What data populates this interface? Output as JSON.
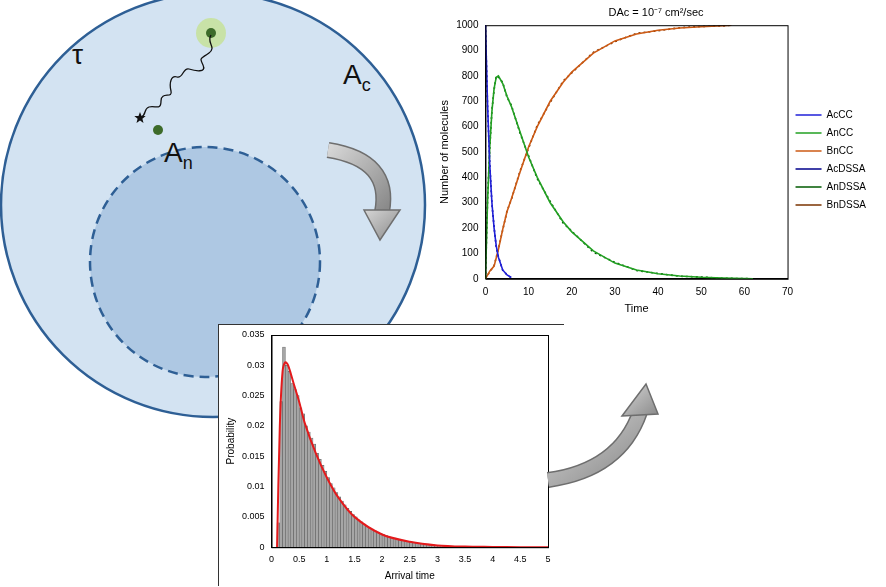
{
  "diagram": {
    "labels": [
      {
        "text": "τ"
      },
      {
        "text": "A",
        "subscript": "c"
      },
      {
        "text": "A",
        "subscript": "n"
      }
    ]
  },
  "chart_data": [
    {
      "type": "line",
      "title": "DAc = 10⁻⁷ cm²/sec",
      "xlabel": "Time",
      "ylabel": "Number of molecules",
      "xlim": [
        0,
        70
      ],
      "xticks": [
        0,
        10,
        20,
        30,
        40,
        50,
        60,
        70
      ],
      "ylim": [
        0,
        1000
      ],
      "yticks": [
        0,
        100,
        200,
        300,
        400,
        500,
        600,
        700,
        800,
        900,
        1000
      ],
      "grid": false,
      "legend": "right",
      "series": [
        {
          "name": "AcCC",
          "color": "#2020d8",
          "line_style": "solid",
          "x": [
            0,
            0.5,
            1,
            1.5,
            2,
            2.5,
            3,
            4,
            5,
            6
          ],
          "values": [
            1000,
            680,
            450,
            300,
            200,
            130,
            85,
            35,
            15,
            5
          ]
        },
        {
          "name": "AnCC",
          "color": "#22a022",
          "line_style": "solid",
          "x": [
            0,
            0.5,
            1,
            1.5,
            2,
            2.5,
            3,
            4,
            5,
            6,
            8,
            10,
            12,
            15,
            18,
            20,
            25,
            30,
            35,
            40,
            45,
            50,
            55,
            60,
            62
          ],
          "values": [
            0,
            310,
            520,
            660,
            750,
            795,
            800,
            770,
            720,
            680,
            580,
            480,
            400,
            300,
            225,
            185,
            110,
            62,
            35,
            20,
            11,
            6,
            3,
            1,
            0
          ]
        },
        {
          "name": "BnCC",
          "color": "#cc5a14",
          "line_style": "solid",
          "x": [
            0,
            1,
            2,
            3,
            4,
            5,
            6,
            8,
            10,
            12,
            15,
            18,
            20,
            25,
            30,
            35,
            40,
            45,
            50,
            55,
            57
          ],
          "values": [
            0,
            30,
            50,
            115,
            195,
            265,
            315,
            420,
            520,
            600,
            700,
            775,
            815,
            890,
            938,
            965,
            980,
            989,
            994,
            998,
            1000
          ]
        },
        {
          "name": "AcDSSA",
          "color": "#00008b",
          "line_style": "dotted",
          "x": [
            0,
            0.5,
            1,
            1.5,
            2,
            2.5,
            3,
            4,
            5,
            6
          ],
          "values": [
            1000,
            675,
            455,
            295,
            205,
            125,
            88,
            33,
            16,
            4
          ]
        },
        {
          "name": "AnDSSA",
          "color": "#005a00",
          "line_style": "dotted",
          "x": [
            0,
            0.5,
            1,
            1.5,
            2,
            2.5,
            3,
            4,
            5,
            6,
            8,
            10,
            12,
            15,
            18,
            20,
            25,
            30,
            35,
            40,
            45,
            50,
            55,
            60,
            62
          ],
          "values": [
            0,
            315,
            515,
            665,
            745,
            800,
            795,
            775,
            715,
            685,
            575,
            485,
            395,
            305,
            220,
            188,
            105,
            65,
            33,
            21,
            10,
            7,
            2,
            1,
            0
          ]
        },
        {
          "name": "BnDSSA",
          "color": "#7a3300",
          "line_style": "dotted",
          "x": [
            0,
            1,
            2,
            3,
            4,
            5,
            6,
            8,
            10,
            12,
            15,
            18,
            20,
            25,
            30,
            35,
            40,
            45,
            50,
            55,
            57
          ],
          "values": [
            0,
            28,
            52,
            118,
            192,
            268,
            312,
            425,
            515,
            605,
            695,
            780,
            812,
            893,
            935,
            968,
            978,
            990,
            995,
            997,
            1000
          ]
        }
      ]
    },
    {
      "type": "histogram",
      "xlabel": "Arrival time",
      "ylabel": "Probability",
      "xlim": [
        0,
        5
      ],
      "xticks": [
        0,
        0.5,
        1,
        1.5,
        2,
        2.5,
        3,
        3.5,
        4,
        4.5,
        5
      ],
      "ylim": [
        0,
        0.035
      ],
      "yticks": [
        0,
        0.005,
        0.01,
        0.015,
        0.02,
        0.025,
        0.03,
        0.035
      ],
      "grid": false,
      "color": "#a6a6a6",
      "bins": [
        0,
        0.05,
        0.1,
        0.15,
        0.2,
        0.25,
        0.3,
        0.35,
        0.4,
        0.45,
        0.5,
        0.55,
        0.6,
        0.65,
        0.7,
        0.75,
        0.8,
        0.85,
        0.9,
        0.95,
        1,
        1.05,
        1.1,
        1.15,
        1.2,
        1.25,
        1.3,
        1.35,
        1.4,
        1.45,
        1.5,
        1.55,
        1.6,
        1.65,
        1.7,
        1.75,
        1.8,
        1.85,
        1.9,
        1.95,
        2,
        2.05,
        2.1,
        2.15,
        2.2,
        2.25,
        2.3,
        2.35,
        2.4,
        2.45,
        2.5,
        2.55,
        2.6,
        2.65,
        2.7,
        2.75,
        2.8,
        2.85,
        2.9,
        2.95,
        3,
        3.05,
        3.1,
        3.15,
        3.2,
        3.25,
        3.3,
        3.35,
        3.4,
        3.45,
        3.5,
        3.55,
        3.6,
        3.65,
        3.7,
        3.75,
        3.8,
        3.85,
        3.9,
        3.95,
        4
      ],
      "counts": [
        0,
        0,
        0.004,
        0.024,
        0.033,
        0.03,
        0.029,
        0.027,
        0.026,
        0.025,
        0.023,
        0.022,
        0.02,
        0.019,
        0.018,
        0.017,
        0.0155,
        0.0145,
        0.0135,
        0.0125,
        0.0115,
        0.0105,
        0.0098,
        0.009,
        0.0083,
        0.0076,
        0.007,
        0.0064,
        0.0059,
        0.0054,
        0.005,
        0.0045,
        0.0042,
        0.0038,
        0.0035,
        0.0032,
        0.003,
        0.0027,
        0.0025,
        0.0023,
        0.0021,
        0.0019,
        0.0017,
        0.0016,
        0.0015,
        0.0013,
        0.0012,
        0.0011,
        0.001,
        0.0009,
        0.0009,
        0.0008,
        0.0007,
        0.0006,
        0.0006,
        0.0005,
        0.0005,
        0.0004,
        0.0004,
        0.0003,
        0.0003,
        0.0003,
        0.0002,
        0.0002,
        0.0002,
        0.0002,
        0.0001,
        0.0001,
        0.0001,
        0.0001,
        0.0001,
        0.0001,
        0.0001,
        0,
        0.0001,
        0,
        0,
        0,
        0.0001,
        0
      ],
      "series": [
        {
          "type": "line",
          "color": "#e41a1c",
          "line_style": "solid",
          "x": [
            0.1,
            0.15,
            0.2,
            0.25,
            0.3,
            0.4,
            0.5,
            0.6,
            0.8,
            1,
            1.2,
            1.5,
            2,
            2.5,
            3,
            3.5,
            4,
            4.5,
            5
          ],
          "values": [
            0,
            0.02,
            0.029,
            0.0305,
            0.03,
            0.027,
            0.024,
            0.0205,
            0.0155,
            0.0115,
            0.0083,
            0.005,
            0.0021,
            0.0009,
            0.0003,
            0.0001,
            5e-05,
            0,
            0
          ]
        }
      ]
    }
  ]
}
